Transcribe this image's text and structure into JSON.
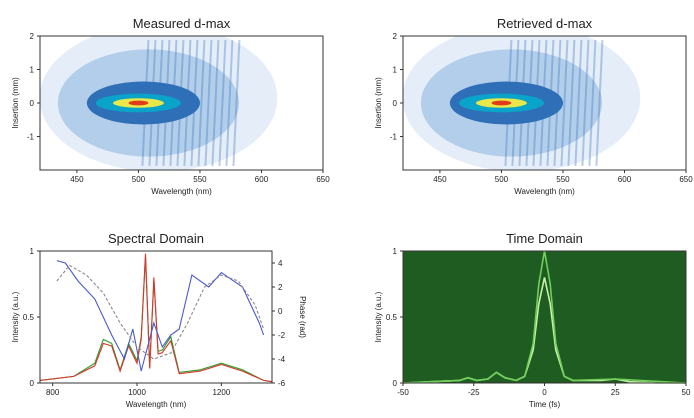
{
  "chart_data": [
    {
      "type": "heatmap",
      "title": "Measured d-max",
      "xlabel": "Wavelength (nm)",
      "ylabel": "Insertion (mm)",
      "xlim": [
        420,
        650
      ],
      "ylim": [
        -2,
        2
      ],
      "x_ticks": [
        "450",
        "500",
        "550",
        "600",
        "650"
      ],
      "y_ticks": [
        "2",
        "1",
        "0",
        "-1"
      ],
      "colormap": [
        "#ffffff",
        "#c6dcf0",
        "#2f6fb8",
        "#0aa3c9",
        "#e8e84a",
        "#e23a1a"
      ],
      "peak": {
        "x": 500,
        "y": 0.0
      }
    },
    {
      "type": "heatmap",
      "title": "Retrieved d-max",
      "xlabel": "Wavelength (nm)",
      "ylabel": "Insertion (mm)",
      "xlim": [
        420,
        650
      ],
      "ylim": [
        -2,
        2
      ],
      "x_ticks": [
        "450",
        "500",
        "550",
        "600",
        "650"
      ],
      "y_ticks": [
        "2",
        "1",
        "0",
        "-1"
      ],
      "colormap": [
        "#ffffff",
        "#c6dcf0",
        "#2f6fb8",
        "#0aa3c9",
        "#e8e84a",
        "#e23a1a"
      ],
      "peak": {
        "x": 500,
        "y": 0.0
      }
    },
    {
      "type": "line",
      "title": "Spectral Domain",
      "xlabel": "Wavelength (nm)",
      "ylabel": "Intensity (a.u.)",
      "y2label": "Phase (rad)",
      "xlim": [
        770,
        1320
      ],
      "ylim": [
        0,
        1
      ],
      "y2lim": [
        -6,
        5
      ],
      "x_ticks": [
        "800",
        "1000",
        "1200"
      ],
      "y_ticks": [
        "1",
        "0.5",
        "0"
      ],
      "y2_ticks": [
        "4",
        "2",
        "0",
        "-2",
        "-4",
        "-6"
      ],
      "series": [
        {
          "color": "#2e9e2e",
          "axis": "left",
          "x": [
            770,
            850,
            900,
            920,
            940,
            960,
            980,
            1000,
            1010,
            1020,
            1030,
            1040,
            1050,
            1060,
            1080,
            1100,
            1150,
            1200,
            1250,
            1300,
            1320
          ],
          "y": [
            0.02,
            0.05,
            0.15,
            0.33,
            0.3,
            0.1,
            0.3,
            0.17,
            0.35,
            0.96,
            0.12,
            0.78,
            0.24,
            0.25,
            0.35,
            0.08,
            0.1,
            0.15,
            0.1,
            0.02,
            0.01
          ]
        },
        {
          "color": "#d9362a",
          "axis": "left",
          "x": [
            770,
            850,
            900,
            920,
            940,
            960,
            980,
            1000,
            1010,
            1020,
            1030,
            1040,
            1050,
            1060,
            1080,
            1100,
            1150,
            1200,
            1250,
            1300,
            1320
          ],
          "y": [
            0.02,
            0.05,
            0.13,
            0.3,
            0.28,
            0.09,
            0.28,
            0.15,
            0.33,
            0.98,
            0.11,
            0.8,
            0.22,
            0.23,
            0.32,
            0.07,
            0.09,
            0.14,
            0.09,
            0.02,
            0.01
          ]
        },
        {
          "color": "#4a5ad0",
          "axis": "right",
          "x": [
            810,
            830,
            860,
            900,
            940,
            970,
            990,
            1010,
            1040,
            1060,
            1080,
            1100,
            1130,
            1170,
            1200,
            1250,
            1290,
            1300
          ],
          "y": [
            4.2,
            4.0,
            2.5,
            1.0,
            -2.0,
            -4.0,
            -1.5,
            -5.0,
            -1.0,
            -3.0,
            -2.0,
            -1.5,
            3.0,
            2.0,
            3.2,
            2.0,
            -1.0,
            -2.0
          ]
        },
        {
          "color": "#8a8a8a",
          "axis": "right",
          "dashed": true,
          "x": [
            810,
            840,
            880,
            920,
            960,
            1000,
            1040,
            1080,
            1120,
            1160,
            1200,
            1240,
            1280,
            1300
          ],
          "y": [
            2.5,
            3.8,
            3.0,
            1.5,
            -1.0,
            -3.0,
            -4.0,
            -3.5,
            -1.0,
            2.0,
            3.0,
            2.5,
            0.5,
            -1.5
          ]
        }
      ]
    },
    {
      "type": "line",
      "title": "Time Domain",
      "xlabel": "Time (fs)",
      "ylabel": "Intensity (a.u.)",
      "xlim": [
        -50,
        50
      ],
      "ylim": [
        0,
        1
      ],
      "x_ticks": [
        "-50",
        "-25",
        "0",
        "25",
        "50"
      ],
      "y_ticks": [
        "1",
        "0.5",
        "0"
      ],
      "background": "#1f5c22",
      "series": [
        {
          "color": "#c8f0a8",
          "x": [
            -50,
            -40,
            -30,
            -27,
            -24,
            -20,
            -17,
            -14,
            -10,
            -7,
            -4,
            -2,
            0,
            2,
            4,
            7,
            10,
            20,
            25,
            30,
            40,
            50
          ],
          "y": [
            0.0,
            0.01,
            0.02,
            0.04,
            0.02,
            0.03,
            0.08,
            0.04,
            0.02,
            0.05,
            0.25,
            0.6,
            0.8,
            0.6,
            0.25,
            0.05,
            0.02,
            0.02,
            0.03,
            0.01,
            0.0,
            0.0
          ]
        },
        {
          "color": "#6fcf5a",
          "x": [
            -50,
            -30,
            -27,
            -24,
            -20,
            -17,
            -14,
            -10,
            -7,
            -4,
            -2,
            0,
            2,
            4,
            7,
            10,
            25,
            50
          ],
          "y": [
            0.0,
            0.02,
            0.04,
            0.02,
            0.03,
            0.08,
            0.04,
            0.02,
            0.05,
            0.3,
            0.75,
            1.0,
            0.75,
            0.3,
            0.05,
            0.02,
            0.03,
            0.0
          ]
        }
      ]
    }
  ]
}
